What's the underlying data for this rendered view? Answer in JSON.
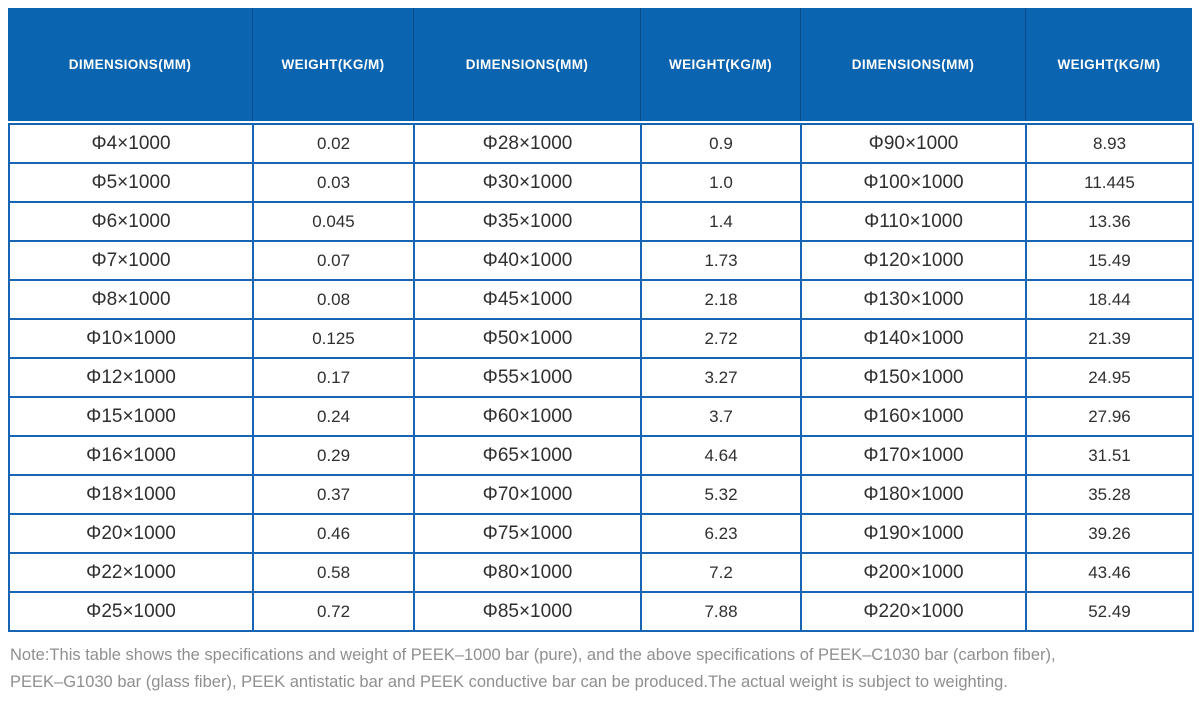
{
  "header": {
    "columns": [
      "DIMENSIONS(MM)",
      "WEIGHT(KG/M)",
      "DIMENSIONS(MM)",
      "WEIGHT(KG/M)",
      "DIMENSIONS(MM)",
      "WEIGHT(KG/M)"
    ]
  },
  "rows": [
    [
      "Φ4×1000",
      "0.02",
      "Φ28×1000",
      "0.9",
      "Φ90×1000",
      "8.93"
    ],
    [
      "Φ5×1000",
      "0.03",
      "Φ30×1000",
      "1.0",
      "Φ100×1000",
      "11.445"
    ],
    [
      "Φ6×1000",
      "0.045",
      "Φ35×1000",
      "1.4",
      "Φ110×1000",
      "13.36"
    ],
    [
      "Φ7×1000",
      "0.07",
      "Φ40×1000",
      "1.73",
      "Φ120×1000",
      "15.49"
    ],
    [
      "Φ8×1000",
      "0.08",
      "Φ45×1000",
      "2.18",
      "Φ130×1000",
      "18.44"
    ],
    [
      "Φ10×1000",
      "0.125",
      "Φ50×1000",
      "2.72",
      "Φ140×1000",
      "21.39"
    ],
    [
      "Φ12×1000",
      "0.17",
      "Φ55×1000",
      "3.27",
      "Φ150×1000",
      "24.95"
    ],
    [
      "Φ15×1000",
      "0.24",
      "Φ60×1000",
      "3.7",
      "Φ160×1000",
      "27.96"
    ],
    [
      "Φ16×1000",
      "0.29",
      "Φ65×1000",
      "4.64",
      "Φ170×1000",
      "31.51"
    ],
    [
      "Φ18×1000",
      "0.37",
      "Φ70×1000",
      "5.32",
      "Φ180×1000",
      "35.28"
    ],
    [
      "Φ20×1000",
      "0.46",
      "Φ75×1000",
      "6.23",
      "Φ190×1000",
      "39.26"
    ],
    [
      "Φ22×1000",
      "0.58",
      "Φ80×1000",
      "7.2",
      "Φ200×1000",
      "43.46"
    ],
    [
      "Φ25×1000",
      "0.72",
      "Φ85×1000",
      "7.88",
      "Φ220×1000",
      "52.49"
    ]
  ],
  "note": {
    "lines": [
      "Note:This table shows the specifications and weight of PEEK–1000 bar (pure), and the above specifications of PEEK–C1030 bar (carbon fiber),",
      "PEEK–G1030 bar (glass fiber), PEEK antistatic bar and PEEK conductive bar can be produced.The actual weight is subject to weighting."
    ]
  },
  "colors": {
    "header_bg": "#0a64af",
    "grid_border": "#1565b4",
    "note_text": "#8f8f8f"
  }
}
